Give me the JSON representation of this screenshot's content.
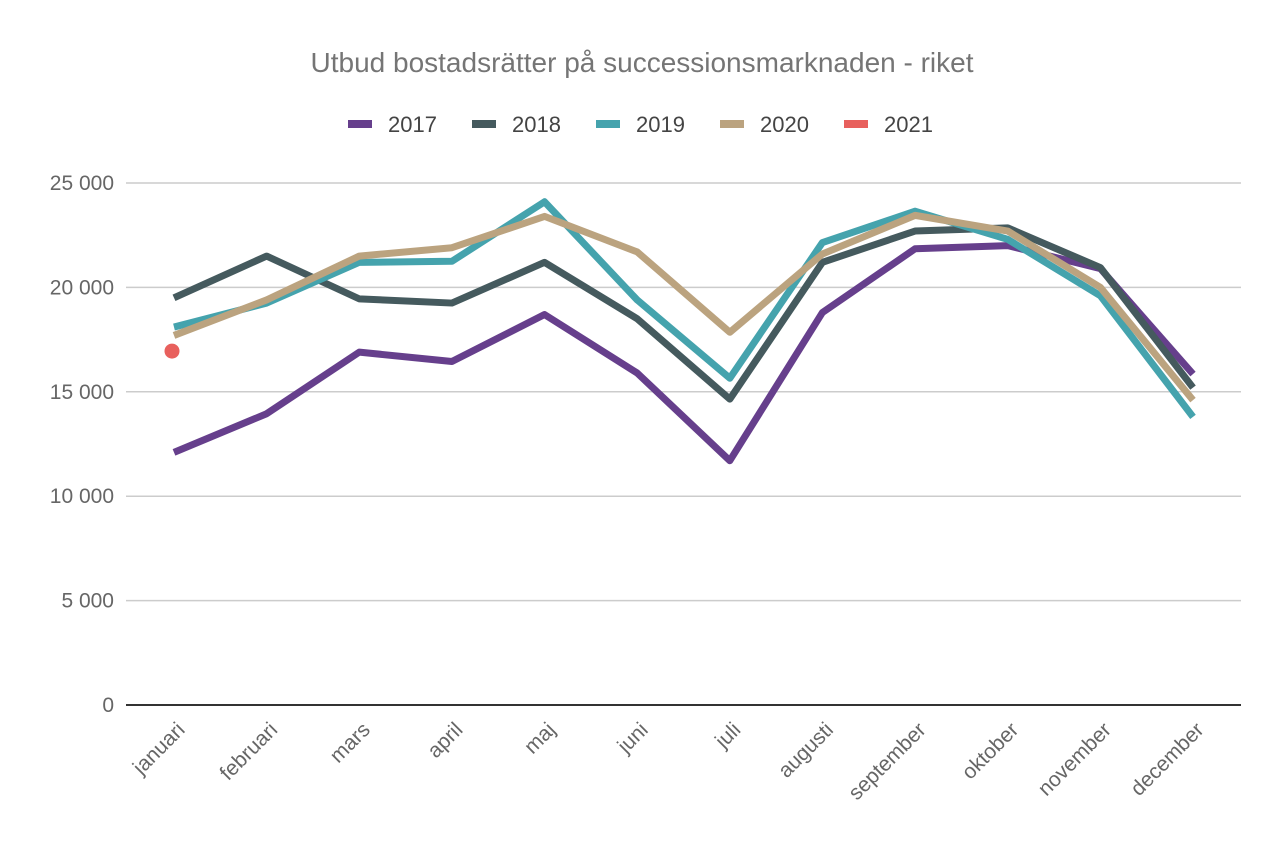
{
  "chart_data": {
    "type": "line",
    "title": "Utbud bostadsrätter på successionsmarknaden - riket",
    "categories": [
      "januari",
      "februari",
      "mars",
      "april",
      "maj",
      "juni",
      "juli",
      "augusti",
      "september",
      "oktober",
      "november",
      "december"
    ],
    "ylim": [
      0,
      25000
    ],
    "yticks": [
      0,
      5000,
      10000,
      15000,
      20000,
      25000
    ],
    "ytick_labels": [
      "0",
      "5 000",
      "10 000",
      "15 000",
      "20 000",
      "25 000"
    ],
    "grid": true,
    "legend_position": "top",
    "series": [
      {
        "name": "2017",
        "color": "#663f8c",
        "values": [
          12100,
          13950,
          16900,
          16450,
          18700,
          15900,
          11700,
          18800,
          21850,
          22000,
          20900,
          15850
        ]
      },
      {
        "name": "2018",
        "color": "#455a5e",
        "values": [
          19500,
          21500,
          19450,
          19250,
          21200,
          18500,
          14650,
          21200,
          22700,
          22850,
          20950,
          15200
        ]
      },
      {
        "name": "2019",
        "color": "#45a3ad",
        "values": [
          18100,
          19250,
          21200,
          21250,
          24100,
          19400,
          15650,
          22150,
          23650,
          22300,
          19600,
          13800
        ]
      },
      {
        "name": "2020",
        "color": "#bba37f",
        "values": [
          17700,
          19400,
          21500,
          21900,
          23400,
          21700,
          17850,
          21600,
          23450,
          22700,
          20000,
          14600
        ]
      },
      {
        "name": "2021",
        "color": "#e8605d",
        "values": [
          16950,
          null,
          null,
          null,
          null,
          null,
          null,
          null,
          null,
          null,
          null,
          null
        ]
      }
    ]
  }
}
